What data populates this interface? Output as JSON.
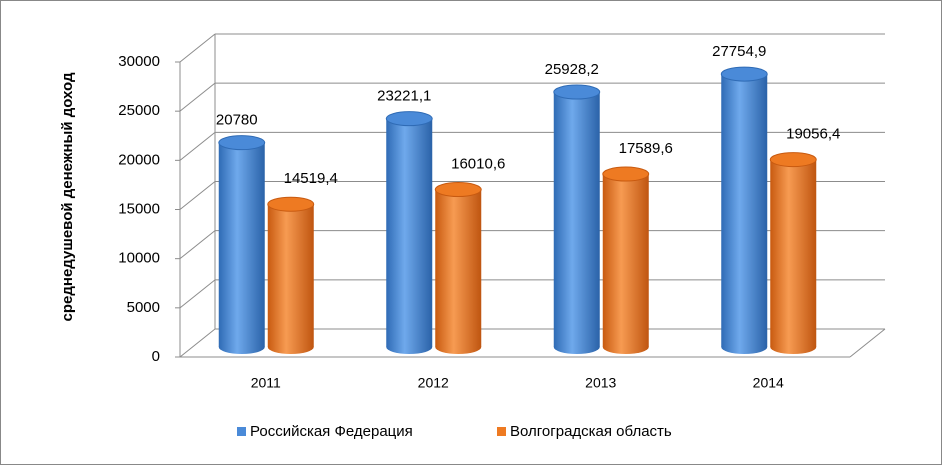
{
  "chart_data": {
    "type": "bar3d",
    "ylabel": "среднедушевой денежный  доход",
    "categories": [
      "2011",
      "2012",
      "2013",
      "2014"
    ],
    "series": [
      {
        "name": "Российская Федерация",
        "color": "#4a8ad8",
        "values": [
          20780,
          23221.1,
          25928.2,
          27754.9
        ],
        "value_labels": [
          "20780",
          "23221,1",
          "25928,2",
          "27754,9"
        ]
      },
      {
        "name": "Волгоградская область",
        "color": "#ee7a22",
        "values": [
          14519.4,
          16010.6,
          17589.6,
          19056.4
        ],
        "value_labels": [
          "14519,4",
          "16010,6",
          "17589,6",
          "19056,4"
        ]
      }
    ],
    "ylim": [
      0,
      30000
    ],
    "yticks": [
      0,
      5000,
      10000,
      15000,
      20000,
      25000,
      30000
    ],
    "grid": true,
    "legend": "bottom"
  }
}
